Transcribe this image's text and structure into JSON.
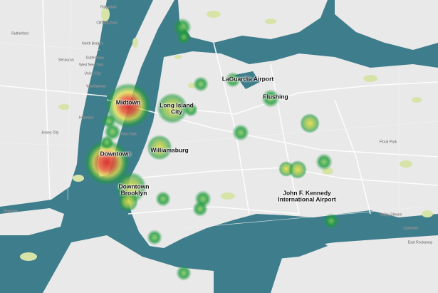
{
  "colors": {
    "water": "#3e7d8c",
    "land": "#e9e9e9",
    "park": "#d6e4a8",
    "heat_low": "#1f9a3e",
    "heat_mid": "#e3e04a",
    "heat_high": "#d62a2a"
  },
  "map": {
    "labels": {
      "midtown": "Midtown",
      "lic": "Long Island\nCity",
      "laguardia": "LaGuardia Airport",
      "flushing": "Flushing",
      "williamsburg": "Williamsburg",
      "downtown": "Downtown",
      "downtown_brooklyn": "Downtown\nBrooklyn",
      "jfk": "John F. Kennedy\nInternational Airport"
    },
    "minor_labels": {
      "ridgefield": "Ridgefield",
      "cliffside_park": "Cliffside Park",
      "rutherford": "Rutherford",
      "north_bergen": "North Bergen",
      "guttenberg": "Guttenberg",
      "west_new_york": "West New York",
      "secaucus": "Secaucus",
      "union_city": "Union City",
      "weehawken": "Weehawken",
      "hoboken": "Hoboken",
      "jersey_city": "Jersey City",
      "new_york": "New York",
      "bayonne": "Bayonne",
      "floral_park": "Floral Park",
      "valley_stream": "Valley Stream",
      "lynbrook": "Lynbrook",
      "east_rockaway": "East Rockaway"
    }
  }
}
